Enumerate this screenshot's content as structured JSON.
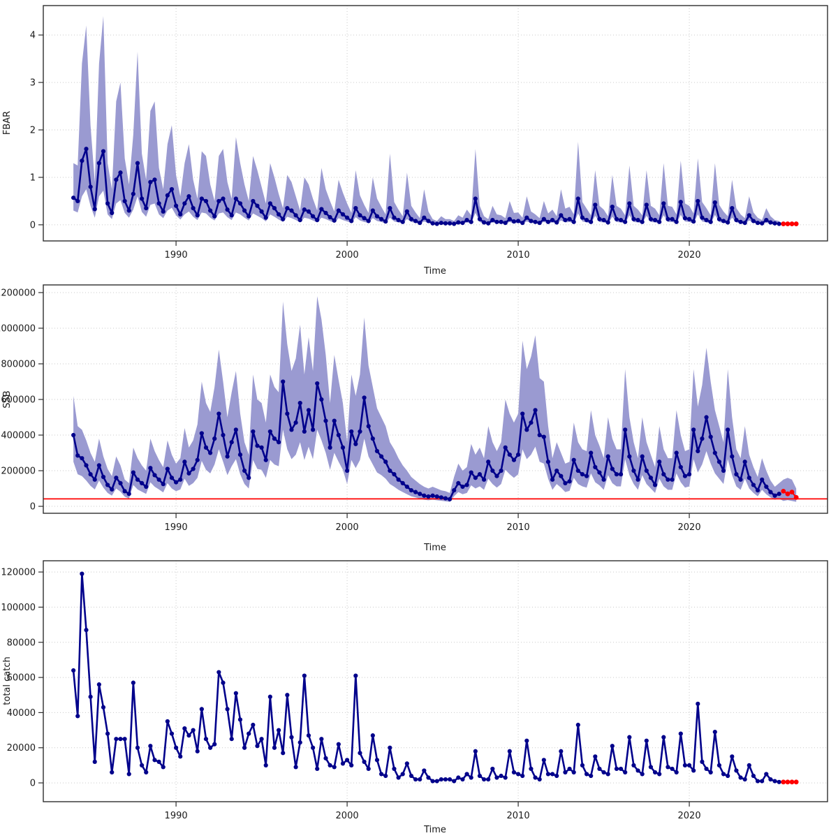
{
  "page": {
    "background": "#ffffff"
  },
  "colors": {
    "line": "#00008B",
    "band": "#9A9AD1",
    "forecast": "#FF0000",
    "reference_line": "#FF0000",
    "grid": "#C9C9C9",
    "frame": "#2E2E2E",
    "tick": "#2E2E2E",
    "text": "#1a1a1a"
  },
  "chart_data": [
    {
      "id": "fbar",
      "type": "line",
      "title": "",
      "xlabel": "Time",
      "ylabel": "FBAR",
      "grid": true,
      "legend": "none",
      "xlim": [
        1982.24,
        2028.08
      ],
      "xticks": [
        1990,
        2000,
        2010,
        2020
      ],
      "ylim": [
        -0.34,
        4.62
      ],
      "yticks": [
        0,
        1,
        2,
        3,
        4
      ],
      "scale": 1,
      "x_start": 1984.0,
      "x_step": 0.25,
      "values": [
        0.57,
        0.5,
        1.35,
        1.6,
        0.8,
        0.33,
        1.3,
        1.55,
        0.45,
        0.25,
        0.95,
        1.1,
        0.5,
        0.3,
        0.65,
        1.3,
        0.55,
        0.35,
        0.9,
        0.95,
        0.45,
        0.28,
        0.62,
        0.75,
        0.4,
        0.22,
        0.45,
        0.6,
        0.35,
        0.2,
        0.55,
        0.5,
        0.3,
        0.18,
        0.5,
        0.55,
        0.32,
        0.2,
        0.55,
        0.45,
        0.3,
        0.18,
        0.5,
        0.4,
        0.28,
        0.15,
        0.45,
        0.35,
        0.22,
        0.12,
        0.35,
        0.3,
        0.2,
        0.1,
        0.32,
        0.28,
        0.18,
        0.1,
        0.33,
        0.25,
        0.16,
        0.09,
        0.3,
        0.22,
        0.15,
        0.08,
        0.35,
        0.2,
        0.14,
        0.08,
        0.3,
        0.18,
        0.12,
        0.07,
        0.35,
        0.15,
        0.1,
        0.06,
        0.28,
        0.12,
        0.08,
        0.04,
        0.15,
        0.08,
        0.03,
        0.02,
        0.04,
        0.03,
        0.03,
        0.02,
        0.05,
        0.04,
        0.1,
        0.06,
        0.55,
        0.12,
        0.05,
        0.03,
        0.1,
        0.06,
        0.06,
        0.04,
        0.12,
        0.07,
        0.08,
        0.04,
        0.15,
        0.08,
        0.06,
        0.04,
        0.12,
        0.06,
        0.1,
        0.05,
        0.2,
        0.1,
        0.12,
        0.06,
        0.55,
        0.15,
        0.1,
        0.06,
        0.42,
        0.12,
        0.1,
        0.05,
        0.38,
        0.12,
        0.1,
        0.06,
        0.45,
        0.12,
        0.1,
        0.06,
        0.42,
        0.12,
        0.1,
        0.06,
        0.45,
        0.12,
        0.12,
        0.06,
        0.48,
        0.14,
        0.12,
        0.07,
        0.5,
        0.15,
        0.1,
        0.06,
        0.47,
        0.12,
        0.08,
        0.05,
        0.35,
        0.1,
        0.06,
        0.04,
        0.2,
        0.08,
        0.04,
        0.03,
        0.1,
        0.05,
        0.03,
        0.02
      ],
      "band_hi": [
        1.3,
        1.25,
        3.4,
        4.2,
        2.1,
        0.9,
        3.4,
        4.4,
        1.3,
        0.75,
        2.6,
        3.0,
        1.4,
        0.85,
        1.9,
        3.65,
        1.5,
        0.95,
        2.4,
        2.6,
        1.2,
        0.75,
        1.7,
        2.1,
        1.05,
        0.6,
        1.3,
        1.7,
        0.95,
        0.55,
        1.55,
        1.45,
        0.85,
        0.5,
        1.45,
        1.6,
        0.9,
        0.55,
        1.85,
        1.3,
        0.85,
        0.5,
        1.45,
        1.15,
        0.8,
        0.45,
        1.3,
        1.0,
        0.65,
        0.35,
        1.05,
        0.9,
        0.6,
        0.3,
        1.0,
        0.85,
        0.55,
        0.3,
        1.2,
        0.75,
        0.5,
        0.28,
        0.95,
        0.68,
        0.45,
        0.25,
        1.15,
        0.62,
        0.42,
        0.25,
        1.0,
        0.55,
        0.38,
        0.22,
        1.5,
        0.48,
        0.32,
        0.18,
        1.1,
        0.4,
        0.26,
        0.14,
        0.75,
        0.28,
        0.12,
        0.08,
        0.18,
        0.12,
        0.12,
        0.08,
        0.2,
        0.15,
        0.32,
        0.2,
        1.6,
        0.4,
        0.18,
        0.12,
        0.4,
        0.22,
        0.2,
        0.14,
        0.5,
        0.25,
        0.26,
        0.15,
        0.6,
        0.28,
        0.22,
        0.14,
        0.5,
        0.24,
        0.32,
        0.18,
        0.75,
        0.34,
        0.38,
        0.22,
        1.75,
        0.48,
        0.34,
        0.2,
        1.15,
        0.4,
        0.32,
        0.18,
        1.05,
        0.4,
        0.34,
        0.2,
        1.25,
        0.4,
        0.32,
        0.2,
        1.15,
        0.4,
        0.34,
        0.2,
        1.3,
        0.4,
        0.38,
        0.22,
        1.35,
        0.45,
        0.4,
        0.24,
        1.4,
        0.48,
        0.35,
        0.2,
        1.3,
        0.42,
        0.28,
        0.18,
        0.95,
        0.35,
        0.22,
        0.14,
        0.6,
        0.26,
        0.15,
        0.1,
        0.35,
        0.18,
        0.1,
        0.08
      ],
      "band_lo": [
        0.3,
        0.26,
        0.6,
        0.75,
        0.4,
        0.15,
        0.6,
        0.72,
        0.22,
        0.12,
        0.45,
        0.52,
        0.25,
        0.15,
        0.32,
        0.6,
        0.27,
        0.17,
        0.42,
        0.45,
        0.22,
        0.14,
        0.3,
        0.36,
        0.2,
        0.11,
        0.22,
        0.28,
        0.17,
        0.1,
        0.26,
        0.24,
        0.15,
        0.09,
        0.24,
        0.26,
        0.16,
        0.1,
        0.26,
        0.22,
        0.15,
        0.09,
        0.24,
        0.19,
        0.14,
        0.07,
        0.22,
        0.17,
        0.11,
        0.06,
        0.17,
        0.14,
        0.1,
        0.05,
        0.15,
        0.13,
        0.09,
        0.05,
        0.15,
        0.12,
        0.08,
        0.04,
        0.14,
        0.1,
        0.07,
        0.04,
        0.16,
        0.09,
        0.06,
        0.04,
        0.14,
        0.08,
        0.06,
        0.03,
        0.15,
        0.07,
        0.05,
        0.03,
        0.12,
        0.06,
        0.04,
        0.02,
        0.07,
        0.04,
        0.01,
        0.01,
        0.02,
        0.01,
        0.01,
        0.01,
        0.02,
        0.02,
        0.05,
        0.03,
        0.25,
        0.06,
        0.02,
        0.01,
        0.05,
        0.03,
        0.03,
        0.02,
        0.06,
        0.03,
        0.04,
        0.02,
        0.07,
        0.04,
        0.03,
        0.02,
        0.06,
        0.03,
        0.05,
        0.02,
        0.09,
        0.05,
        0.06,
        0.03,
        0.24,
        0.07,
        0.05,
        0.03,
        0.19,
        0.06,
        0.05,
        0.02,
        0.17,
        0.06,
        0.05,
        0.03,
        0.2,
        0.06,
        0.05,
        0.03,
        0.19,
        0.06,
        0.05,
        0.03,
        0.2,
        0.06,
        0.06,
        0.03,
        0.21,
        0.07,
        0.06,
        0.03,
        0.22,
        0.07,
        0.05,
        0.03,
        0.21,
        0.06,
        0.04,
        0.02,
        0.15,
        0.05,
        0.03,
        0.02,
        0.09,
        0.04,
        0.02,
        0.01,
        0.04,
        0.02,
        0.01,
        0.01
      ],
      "forecast_x_start": 2025.5,
      "forecast_values": [
        0.02,
        0.02,
        0.02,
        0.02
      ]
    },
    {
      "id": "ssb",
      "type": "line",
      "title": "",
      "xlabel": "Time",
      "ylabel": "SSB",
      "grid": true,
      "legend": "none",
      "xlim": [
        1982.24,
        2028.08
      ],
      "xticks": [
        1990,
        2000,
        2010,
        2020
      ],
      "ylim": [
        -39000,
        1243000
      ],
      "yticks": [
        0,
        200000,
        400000,
        600000,
        800000,
        1000000,
        1200000
      ],
      "scale": 1000,
      "ref_line": 42,
      "x_start": 1984.0,
      "x_step": 0.25,
      "values": [
        400,
        285,
        270,
        230,
        180,
        150,
        230,
        165,
        120,
        95,
        160,
        130,
        85,
        70,
        190,
        150,
        130,
        110,
        215,
        175,
        150,
        125,
        210,
        160,
        135,
        150,
        250,
        185,
        210,
        260,
        410,
        330,
        300,
        380,
        520,
        400,
        280,
        360,
        430,
        290,
        200,
        160,
        420,
        340,
        330,
        260,
        420,
        380,
        360,
        700,
        520,
        430,
        470,
        580,
        420,
        540,
        430,
        690,
        600,
        480,
        330,
        480,
        400,
        330,
        200,
        420,
        350,
        420,
        610,
        450,
        380,
        310,
        280,
        250,
        200,
        180,
        150,
        130,
        110,
        90,
        80,
        70,
        60,
        55,
        60,
        55,
        50,
        45,
        40,
        90,
        130,
        110,
        120,
        190,
        160,
        180,
        150,
        250,
        200,
        170,
        200,
        330,
        290,
        260,
        290,
        520,
        430,
        470,
        540,
        400,
        390,
        250,
        150,
        200,
        170,
        130,
        140,
        260,
        200,
        180,
        170,
        300,
        220,
        190,
        150,
        280,
        210,
        180,
        180,
        430,
        280,
        200,
        150,
        280,
        200,
        160,
        120,
        250,
        180,
        150,
        150,
        300,
        220,
        170,
        180,
        430,
        310,
        380,
        500,
        390,
        300,
        250,
        200,
        430,
        280,
        180,
        150,
        250,
        160,
        120,
        90,
        150,
        110,
        80,
        60,
        70
      ],
      "band_hi": [
        620,
        450,
        430,
        370,
        300,
        250,
        380,
        280,
        210,
        170,
        280,
        230,
        150,
        130,
        330,
        270,
        230,
        200,
        380,
        310,
        260,
        220,
        370,
        290,
        240,
        270,
        440,
        330,
        370,
        460,
        700,
        580,
        530,
        670,
        880,
        700,
        500,
        640,
        760,
        520,
        360,
        290,
        740,
        600,
        580,
        470,
        740,
        670,
        640,
        1150,
        910,
        760,
        830,
        1020,
        740,
        950,
        760,
        1180,
        1050,
        850,
        580,
        850,
        710,
        580,
        360,
        740,
        620,
        740,
        1060,
        790,
        670,
        550,
        500,
        450,
        360,
        320,
        270,
        230,
        200,
        165,
        145,
        125,
        110,
        100,
        110,
        100,
        90,
        85,
        75,
        165,
        240,
        200,
        220,
        350,
        290,
        330,
        270,
        450,
        360,
        310,
        360,
        600,
        520,
        470,
        520,
        930,
        770,
        840,
        960,
        720,
        700,
        450,
        270,
        360,
        300,
        240,
        250,
        470,
        360,
        320,
        310,
        540,
        400,
        340,
        270,
        500,
        380,
        320,
        320,
        770,
        500,
        360,
        270,
        500,
        360,
        290,
        220,
        450,
        320,
        270,
        270,
        540,
        400,
        310,
        320,
        770,
        560,
        680,
        890,
        700,
        540,
        450,
        360,
        770,
        500,
        320,
        270,
        450,
        290,
        220,
        165,
        270,
        200,
        145,
        110,
        130,
        150,
        160,
        150,
        100
      ],
      "band_lo": [
        250,
        180,
        170,
        145,
        115,
        95,
        145,
        105,
        75,
        60,
        100,
        82,
        54,
        44,
        120,
        95,
        82,
        70,
        135,
        110,
        95,
        78,
        130,
        100,
        85,
        95,
        155,
        115,
        130,
        160,
        255,
        205,
        185,
        235,
        320,
        250,
        175,
        225,
        265,
        180,
        125,
        100,
        260,
        210,
        205,
        160,
        260,
        235,
        225,
        430,
        320,
        265,
        290,
        360,
        260,
        335,
        265,
        430,
        370,
        300,
        205,
        300,
        250,
        205,
        125,
        260,
        215,
        260,
        380,
        280,
        235,
        190,
        175,
        155,
        125,
        110,
        93,
        80,
        68,
        56,
        50,
        43,
        37,
        34,
        37,
        34,
        31,
        28,
        25,
        56,
        80,
        68,
        75,
        118,
        100,
        112,
        93,
        155,
        125,
        105,
        125,
        205,
        180,
        160,
        180,
        320,
        265,
        290,
        335,
        250,
        240,
        155,
        93,
        125,
        105,
        80,
        87,
        160,
        125,
        112,
        105,
        185,
        135,
        118,
        93,
        175,
        130,
        112,
        112,
        265,
        175,
        125,
        93,
        175,
        125,
        100,
        75,
        155,
        112,
        93,
        93,
        185,
        135,
        105,
        112,
        265,
        190,
        235,
        310,
        240,
        185,
        155,
        125,
        265,
        175,
        112,
        93,
        155,
        100,
        75,
        56,
        93,
        68,
        50,
        37,
        43,
        30,
        35,
        30,
        25
      ],
      "forecast_x_start": 2025.5,
      "forecast_values": [
        85,
        70,
        80,
        50
      ]
    },
    {
      "id": "total-catch",
      "type": "line",
      "title": "",
      "xlabel": "Time",
      "ylabel": "total catch",
      "grid": true,
      "legend": "none",
      "xlim": [
        1982.24,
        2028.08
      ],
      "xticks": [
        1990,
        2000,
        2010,
        2020
      ],
      "ylim": [
        -10700,
        126400
      ],
      "yticks": [
        0,
        20000,
        40000,
        60000,
        80000,
        100000,
        120000
      ],
      "scale": 1000,
      "x_start": 1984.0,
      "x_step": 0.25,
      "values": [
        64,
        38,
        119,
        87,
        49,
        12,
        56,
        43,
        28,
        6,
        25,
        25,
        25,
        5,
        57,
        20,
        10,
        6,
        21,
        13,
        12,
        9,
        35,
        28,
        20,
        15,
        31,
        27,
        30,
        18,
        42,
        25,
        20,
        22,
        63,
        57,
        42,
        25,
        51,
        36,
        20,
        28,
        33,
        21,
        25,
        10,
        49,
        20,
        30,
        17,
        50,
        26,
        9,
        23,
        61,
        27,
        20,
        8,
        25,
        14,
        10,
        9,
        22,
        11,
        13,
        10,
        61,
        17,
        12,
        8,
        27,
        13,
        5,
        4,
        20,
        8,
        3,
        5,
        11,
        4,
        2,
        2,
        7,
        3,
        1,
        1,
        2,
        2,
        2,
        1,
        3,
        2,
        5,
        3,
        18,
        4,
        2,
        2,
        8,
        3,
        4,
        3,
        18,
        6,
        5,
        4,
        24,
        8,
        3,
        2,
        13,
        5,
        5,
        4,
        18,
        6,
        8,
        6,
        33,
        10,
        5,
        4,
        15,
        8,
        6,
        5,
        21,
        8,
        8,
        6,
        26,
        10,
        7,
        5,
        24,
        9,
        6,
        5,
        26,
        9,
        8,
        6,
        28,
        10,
        10,
        7,
        45,
        12,
        8,
        6,
        29,
        10,
        5,
        4,
        15,
        7,
        3,
        2,
        10,
        4,
        1,
        1,
        5,
        2,
        1,
        0.5
      ],
      "forecast_x_start": 2025.5,
      "forecast_values": [
        0.5,
        0.5,
        0.5,
        0.5
      ]
    }
  ]
}
